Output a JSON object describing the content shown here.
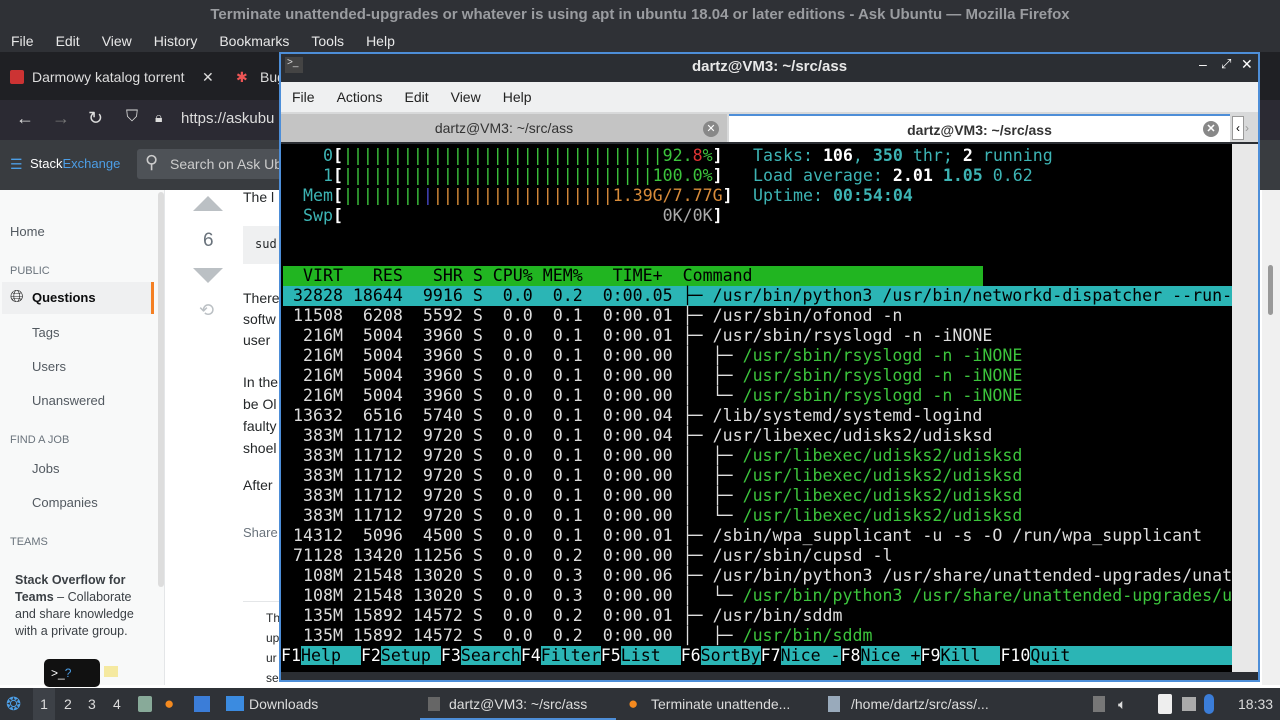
{
  "firefox": {
    "title": "Terminate unattended-upgrades or whatever is using apt in ubuntu 18.04 or later editions - Ask Ubuntu — Mozilla Firefox",
    "menu": [
      "File",
      "Edit",
      "View",
      "History",
      "Bookmarks",
      "Tools",
      "Help"
    ],
    "tabs": [
      "Darmowy katalog torrent",
      "Bug"
    ],
    "url": "https://askubu",
    "se_logo": "StackExchange",
    "search_placeholder": "Search on Ask Ubu"
  },
  "sidebar": {
    "home": "Home",
    "public": "PUBLIC",
    "questions": "Questions",
    "tags": "Tags",
    "users": "Users",
    "unanswered": "Unanswered",
    "find_job": "FIND A JOB",
    "jobs": "Jobs",
    "companies": "Companies",
    "teams": "TEAMS",
    "teams_bold1": "Stack Overflow for",
    "teams_bold2": "Teams",
    "teams_text": " – Collaborate and share knowledge with a private group."
  },
  "post": {
    "vote_count": "6",
    "lines": [
      "The l",
      "sud",
      "There",
      "softw",
      "user",
      "In the",
      "be Ol",
      "faulty",
      "shoel",
      "After",
      "Share",
      "Th",
      "up",
      "ur",
      "se"
    ]
  },
  "terminal": {
    "title": "dartz@VM3: ~/src/ass",
    "menu": [
      "File",
      "Actions",
      "Edit",
      "View",
      "Help"
    ],
    "tabs": [
      "dartz@VM3: ~/src/ass",
      "dartz@VM3: ~/src/ass"
    ],
    "active_tab": 1
  },
  "htop": {
    "cpu0": {
      "label": "0",
      "percent": 92.8,
      "text_a": "92.",
      "text_b": "8",
      "text_c": "%"
    },
    "cpu1": {
      "label": "1",
      "percent": 100.0,
      "text": "100.0%"
    },
    "mem": {
      "label": "Mem",
      "text": "1.39G/7.77G"
    },
    "swp": {
      "label": "Swp",
      "text": "0K/0K"
    },
    "tasks": {
      "label": "Tasks: ",
      "count": "106",
      "sep": ", ",
      "thr": "350",
      "thr_label": " thr; ",
      "running": "2",
      "running_label": " running"
    },
    "load": {
      "label": "Load average: ",
      "v1": "2.01",
      "v5": "1.05",
      "v15": "0.62"
    },
    "uptime": {
      "label": "Uptime: ",
      "value": "00:54:04"
    },
    "header": "  VIRT   RES   SHR S CPU% MEM%   TIME+  Command",
    "rows": [
      {
        "virt": "32828",
        "res": "18644",
        "shr": "9916",
        "s": "S",
        "cpu": "0.0",
        "mem": "0.2",
        "time": "0:00.05",
        "tree": "├─ ",
        "cmd": "/usr/bin/python3 /usr/bin/networkd-dispatcher --run-",
        "child": false,
        "selected": true
      },
      {
        "virt": "11508",
        "res": "6208",
        "shr": "5592",
        "s": "S",
        "cpu": "0.0",
        "mem": "0.1",
        "time": "0:00.01",
        "tree": "├─ ",
        "cmd": "/usr/sbin/ofonod -n",
        "child": false
      },
      {
        "virt": "216M",
        "res": "5004",
        "shr": "3960",
        "s": "S",
        "cpu": "0.0",
        "mem": "0.1",
        "time": "0:00.01",
        "tree": "├─ ",
        "cmd": "/usr/sbin/rsyslogd -n -iNONE",
        "child": false
      },
      {
        "virt": "216M",
        "res": "5004",
        "shr": "3960",
        "s": "S",
        "cpu": "0.0",
        "mem": "0.1",
        "time": "0:00.00",
        "tree": "│  ├─ ",
        "cmd": "/usr/sbin/rsyslogd -n -iNONE",
        "child": true
      },
      {
        "virt": "216M",
        "res": "5004",
        "shr": "3960",
        "s": "S",
        "cpu": "0.0",
        "mem": "0.1",
        "time": "0:00.00",
        "tree": "│  ├─ ",
        "cmd": "/usr/sbin/rsyslogd -n -iNONE",
        "child": true
      },
      {
        "virt": "216M",
        "res": "5004",
        "shr": "3960",
        "s": "S",
        "cpu": "0.0",
        "mem": "0.1",
        "time": "0:00.00",
        "tree": "│  └─ ",
        "cmd": "/usr/sbin/rsyslogd -n -iNONE",
        "child": true
      },
      {
        "virt": "13632",
        "res": "6516",
        "shr": "5740",
        "s": "S",
        "cpu": "0.0",
        "mem": "0.1",
        "time": "0:00.04",
        "tree": "├─ ",
        "cmd": "/lib/systemd/systemd-logind",
        "child": false
      },
      {
        "virt": "383M",
        "res": "11712",
        "shr": "9720",
        "s": "S",
        "cpu": "0.0",
        "mem": "0.1",
        "time": "0:00.04",
        "tree": "├─ ",
        "cmd": "/usr/libexec/udisks2/udisksd",
        "child": false
      },
      {
        "virt": "383M",
        "res": "11712",
        "shr": "9720",
        "s": "S",
        "cpu": "0.0",
        "mem": "0.1",
        "time": "0:00.00",
        "tree": "│  ├─ ",
        "cmd": "/usr/libexec/udisks2/udisksd",
        "child": true
      },
      {
        "virt": "383M",
        "res": "11712",
        "shr": "9720",
        "s": "S",
        "cpu": "0.0",
        "mem": "0.1",
        "time": "0:00.00",
        "tree": "│  ├─ ",
        "cmd": "/usr/libexec/udisks2/udisksd",
        "child": true
      },
      {
        "virt": "383M",
        "res": "11712",
        "shr": "9720",
        "s": "S",
        "cpu": "0.0",
        "mem": "0.1",
        "time": "0:00.00",
        "tree": "│  ├─ ",
        "cmd": "/usr/libexec/udisks2/udisksd",
        "child": true
      },
      {
        "virt": "383M",
        "res": "11712",
        "shr": "9720",
        "s": "S",
        "cpu": "0.0",
        "mem": "0.1",
        "time": "0:00.00",
        "tree": "│  └─ ",
        "cmd": "/usr/libexec/udisks2/udisksd",
        "child": true
      },
      {
        "virt": "14312",
        "res": "5096",
        "shr": "4500",
        "s": "S",
        "cpu": "0.0",
        "mem": "0.1",
        "time": "0:00.01",
        "tree": "├─ ",
        "cmd": "/sbin/wpa_supplicant -u -s -O /run/wpa_supplicant",
        "child": false
      },
      {
        "virt": "71128",
        "res": "13420",
        "shr": "11256",
        "s": "S",
        "cpu": "0.0",
        "mem": "0.2",
        "time": "0:00.00",
        "tree": "├─ ",
        "cmd": "/usr/sbin/cupsd -l",
        "child": false
      },
      {
        "virt": "108M",
        "res": "21548",
        "shr": "13020",
        "s": "S",
        "cpu": "0.0",
        "mem": "0.3",
        "time": "0:00.06",
        "tree": "├─ ",
        "cmd": "/usr/bin/python3 /usr/share/unattended-upgrades/unat",
        "child": false
      },
      {
        "virt": "108M",
        "res": "21548",
        "shr": "13020",
        "s": "S",
        "cpu": "0.0",
        "mem": "0.3",
        "time": "0:00.00",
        "tree": "│  └─ ",
        "cmd": "/usr/bin/python3 /usr/share/unattended-upgrades/u",
        "child": true
      },
      {
        "virt": "135M",
        "res": "15892",
        "shr": "14572",
        "s": "S",
        "cpu": "0.0",
        "mem": "0.2",
        "time": "0:00.01",
        "tree": "├─ ",
        "cmd": "/usr/bin/sddm",
        "child": false
      },
      {
        "virt": "135M",
        "res": "15892",
        "shr": "14572",
        "s": "S",
        "cpu": "0.0",
        "mem": "0.2",
        "time": "0:00.00",
        "tree": "│  ├─ ",
        "cmd": "/usr/bin/sddm",
        "child": true
      }
    ],
    "fkeys": [
      {
        "k": "F1",
        "l": "Help  "
      },
      {
        "k": "F2",
        "l": "Setup "
      },
      {
        "k": "F3",
        "l": "Search"
      },
      {
        "k": "F4",
        "l": "Filter"
      },
      {
        "k": "F5",
        "l": "List  "
      },
      {
        "k": "F6",
        "l": "SortBy"
      },
      {
        "k": "F7",
        "l": "Nice -"
      },
      {
        "k": "F8",
        "l": "Nice +"
      },
      {
        "k": "F9",
        "l": "Kill  "
      },
      {
        "k": "F10",
        "l": "Quit"
      }
    ]
  },
  "taskbar": {
    "workspaces": [
      "1",
      "2",
      "3",
      "4"
    ],
    "items": [
      "Downloads",
      "dartz@VM3: ~/src/ass",
      "Terminate unattende...",
      "/home/dartz/src/ass/..."
    ],
    "clock": "18:33"
  },
  "colors": {
    "accent": "#4d8ed8",
    "htop_green": "#3cc43c",
    "htop_cyan": "#2bb5b5",
    "so_orange": "#f48024"
  }
}
